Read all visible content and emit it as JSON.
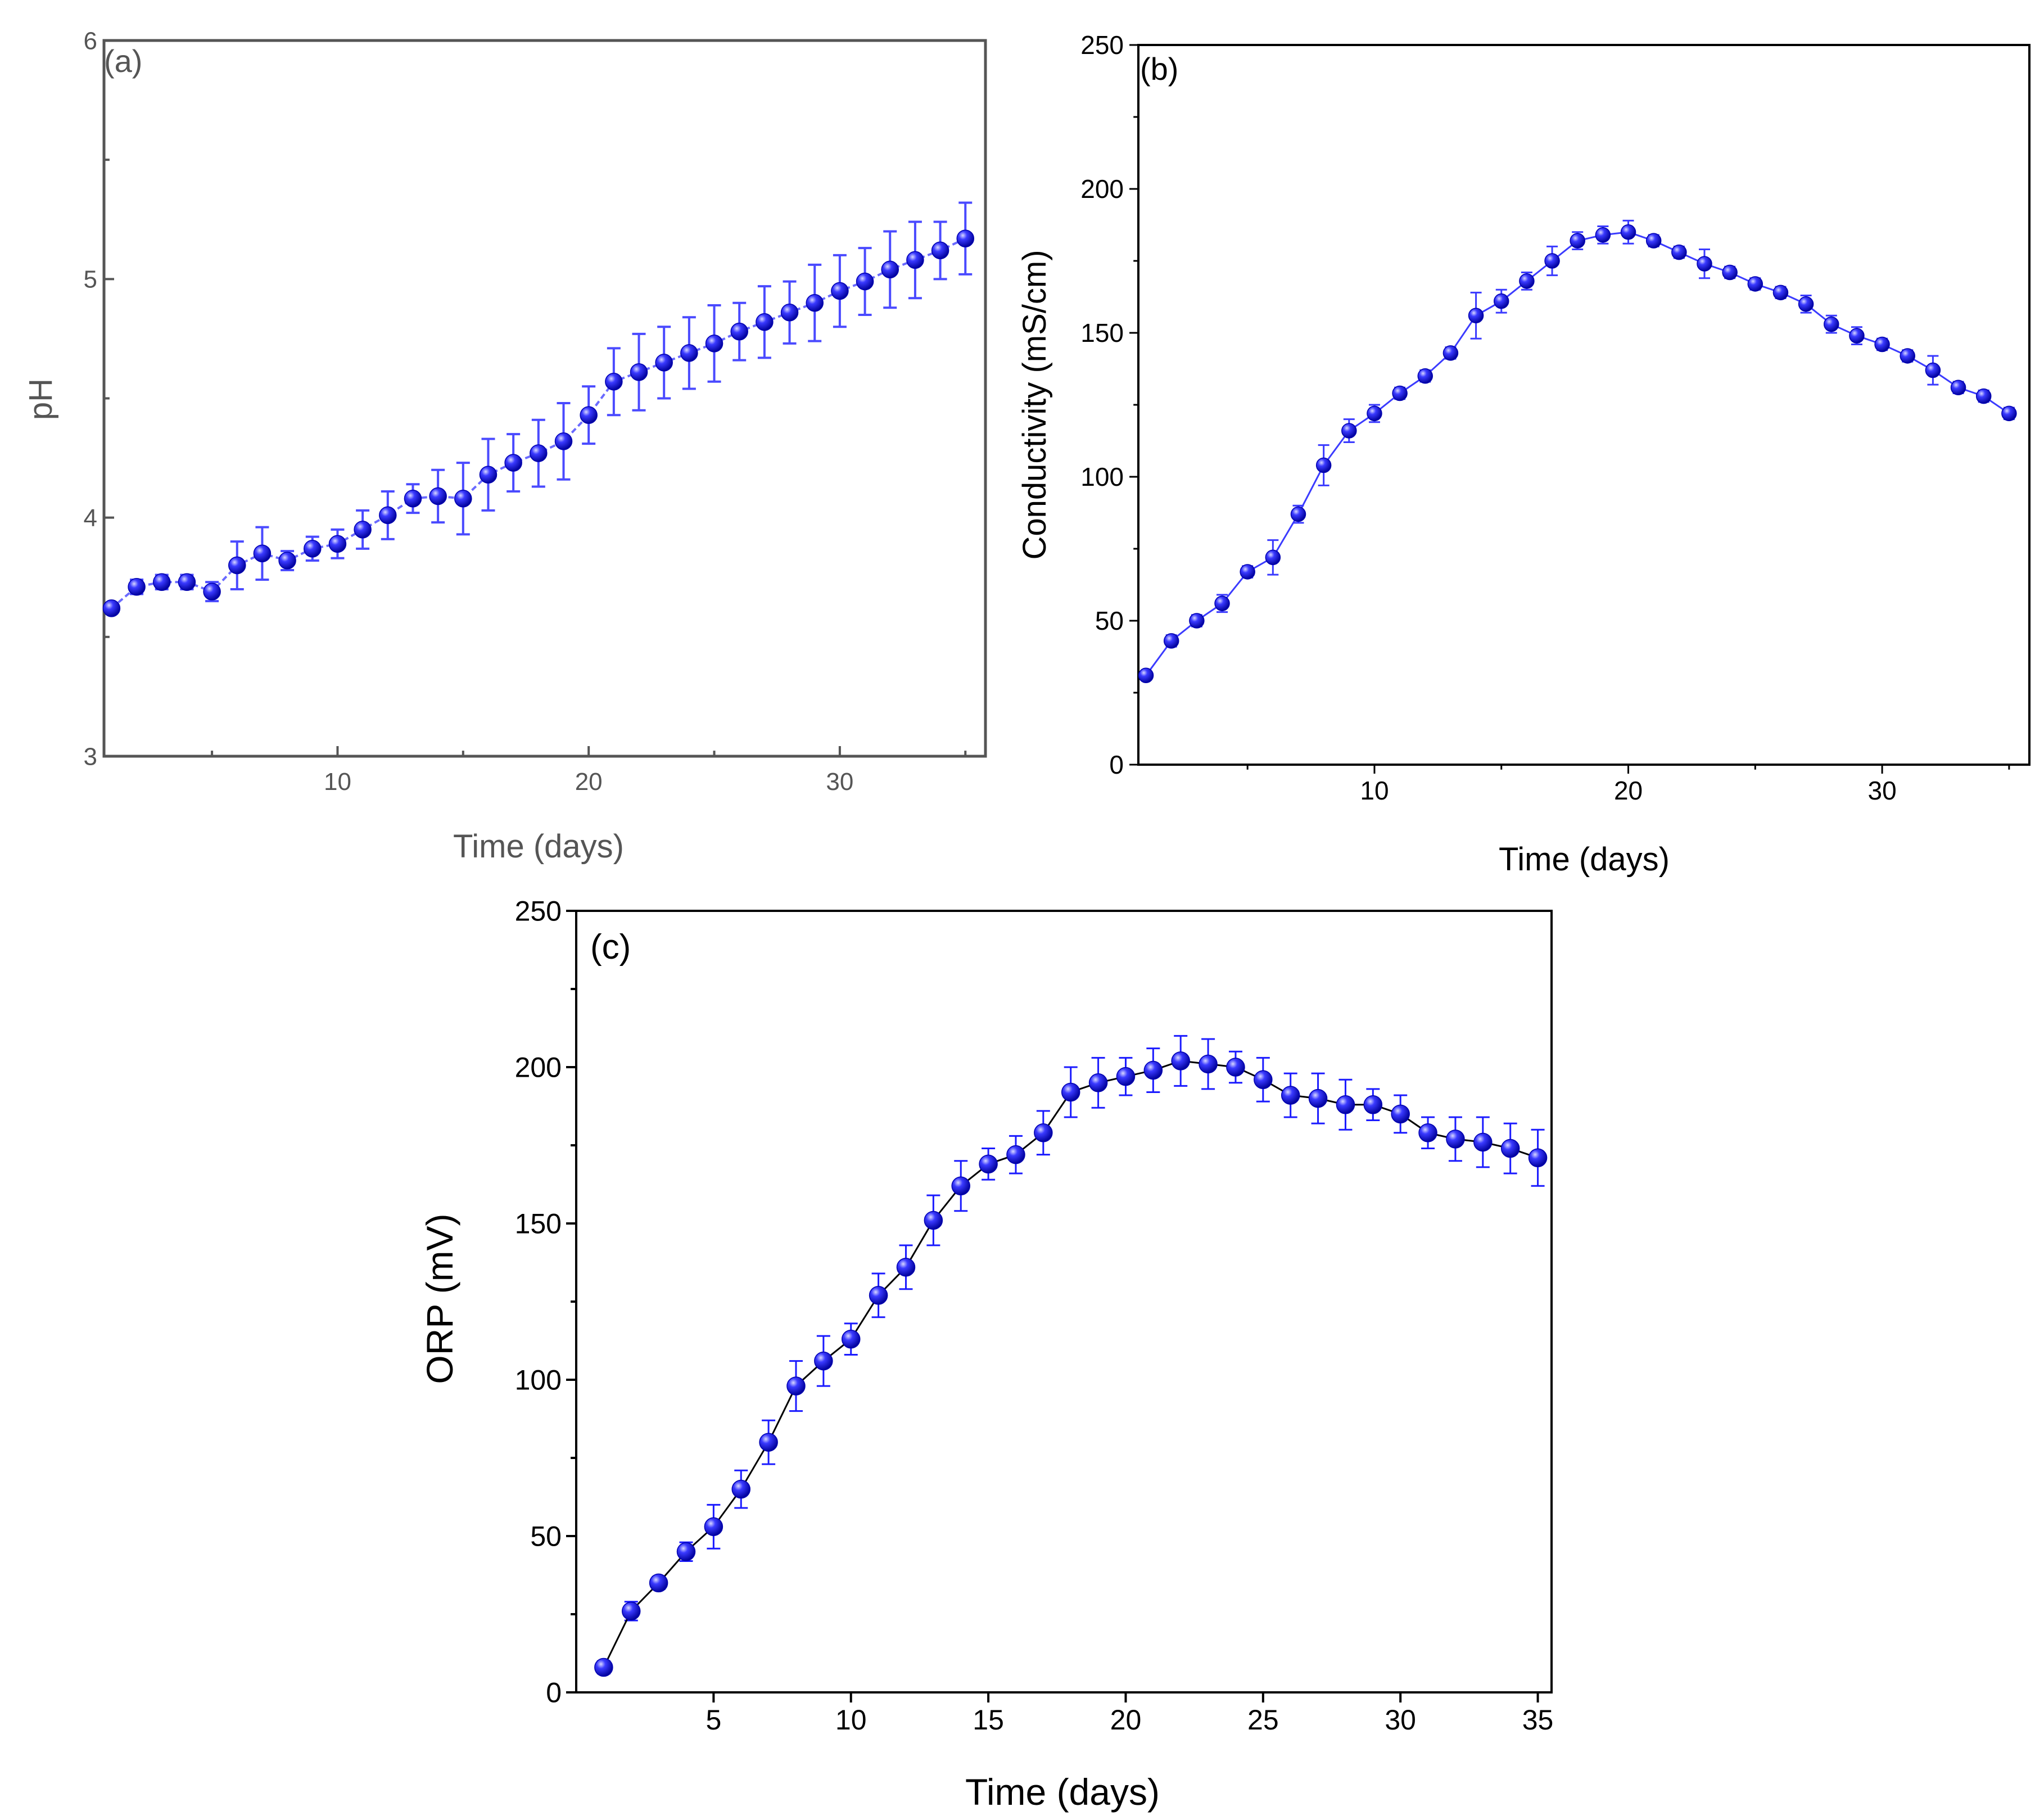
{
  "chart_data": [
    {
      "type": "scatter",
      "panel_label": "(a)",
      "xlabel": "Time (days)",
      "ylabel": "pH",
      "xlim": [
        0.7,
        35.8
      ],
      "ylim": [
        3,
        6
      ],
      "xticks": [
        10,
        20,
        30
      ],
      "yticks": [
        3,
        4,
        5,
        6
      ],
      "color": "#1a1aff",
      "series": [
        {
          "name": "pH",
          "x": [
            1,
            2,
            3,
            4,
            5,
            6,
            7,
            8,
            9,
            10,
            11,
            12,
            13,
            14,
            15,
            16,
            17,
            18,
            19,
            20,
            21,
            22,
            23,
            24,
            25,
            26,
            27,
            28,
            29,
            30,
            31,
            32,
            33,
            34,
            35
          ],
          "y": [
            3.62,
            3.71,
            3.73,
            3.73,
            3.69,
            3.8,
            3.85,
            3.82,
            3.87,
            3.89,
            3.95,
            4.01,
            4.08,
            4.09,
            4.08,
            4.18,
            4.23,
            4.27,
            4.32,
            4.43,
            4.57,
            4.61,
            4.65,
            4.69,
            4.73,
            4.78,
            4.82,
            4.86,
            4.9,
            4.95,
            4.99,
            5.04,
            5.08,
            5.12,
            5.17
          ],
          "err": [
            0.02,
            0.03,
            0.03,
            0.03,
            0.04,
            0.1,
            0.11,
            0.04,
            0.05,
            0.06,
            0.08,
            0.1,
            0.06,
            0.11,
            0.15,
            0.15,
            0.12,
            0.14,
            0.16,
            0.12,
            0.14,
            0.16,
            0.15,
            0.15,
            0.16,
            0.12,
            0.15,
            0.13,
            0.16,
            0.15,
            0.14,
            0.16,
            0.16,
            0.12,
            0.15
          ]
        }
      ]
    },
    {
      "type": "scatter",
      "panel_label": "(b)",
      "xlabel": "Time (days)",
      "ylabel": "Conductivity (mS/cm)",
      "xlim": [
        0.7,
        35.8
      ],
      "ylim": [
        0,
        250
      ],
      "xticks": [
        10,
        20,
        30
      ],
      "yticks": [
        0,
        50,
        100,
        150,
        200,
        250
      ],
      "color": "#1a1aff",
      "series": [
        {
          "name": "Conductivity",
          "x": [
            1,
            2,
            3,
            4,
            5,
            6,
            7,
            8,
            9,
            10,
            11,
            12,
            13,
            14,
            15,
            16,
            17,
            18,
            19,
            20,
            21,
            22,
            23,
            24,
            25,
            26,
            27,
            28,
            29,
            30,
            31,
            32,
            33,
            34,
            35
          ],
          "y": [
            31,
            43,
            50,
            56,
            67,
            72,
            87,
            104,
            116,
            122,
            129,
            135,
            143,
            156,
            161,
            168,
            175,
            182,
            184,
            185,
            182,
            178,
            174,
            171,
            167,
            164,
            160,
            153,
            149,
            146,
            142,
            137,
            131,
            128,
            122
          ],
          "err": [
            1,
            2,
            2,
            3,
            2,
            6,
            3,
            7,
            4,
            3,
            2,
            2,
            2,
            8,
            4,
            3,
            5,
            3,
            3,
            4,
            2,
            2,
            5,
            2,
            2,
            2,
            3,
            3,
            3,
            2,
            2,
            5,
            2,
            2,
            2
          ]
        }
      ]
    },
    {
      "type": "scatter",
      "panel_label": "(c)",
      "xlabel": "Time (days)",
      "ylabel": "ORP (mV)",
      "xlim": [
        0,
        35.5
      ],
      "ylim": [
        0,
        250
      ],
      "xticks": [
        5,
        10,
        15,
        20,
        25,
        30,
        35
      ],
      "yticks": [
        0,
        50,
        100,
        150,
        200,
        250
      ],
      "color": "#1a1aff",
      "series": [
        {
          "name": "ORP",
          "x": [
            1,
            2,
            3,
            4,
            5,
            6,
            7,
            8,
            9,
            10,
            11,
            12,
            13,
            14,
            15,
            16,
            17,
            18,
            19,
            20,
            21,
            22,
            23,
            24,
            25,
            26,
            27,
            28,
            29,
            30,
            31,
            32,
            33,
            34,
            35
          ],
          "y": [
            8,
            26,
            35,
            45,
            53,
            65,
            80,
            98,
            106,
            113,
            127,
            136,
            151,
            162,
            169,
            172,
            179,
            192,
            195,
            197,
            199,
            202,
            201,
            200,
            196,
            191,
            190,
            188,
            188,
            185,
            179,
            177,
            176,
            174,
            171
          ],
          "err": [
            2,
            3,
            2,
            3,
            7,
            6,
            7,
            8,
            8,
            5,
            7,
            7,
            8,
            8,
            5,
            6,
            7,
            8,
            8,
            6,
            7,
            8,
            8,
            5,
            7,
            7,
            8,
            8,
            5,
            6,
            5,
            7,
            8,
            8,
            9
          ]
        }
      ]
    }
  ]
}
